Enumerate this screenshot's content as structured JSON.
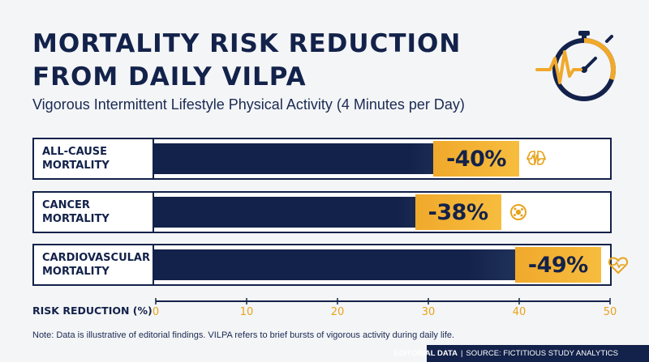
{
  "header": {
    "title": "MORTALITY RISK REDUCTION FROM DAILY VILPA",
    "subtitle": "Vigorous Intermittent Lifestyle Physical Activity (4 Minutes per Day)",
    "logo_icon": "stopwatch-heartbeat-icon"
  },
  "chart_data": {
    "type": "bar",
    "orientation": "horizontal",
    "categories": [
      "ALL-CAUSE\nMORTALITY",
      "CANCER\nMORTALITY",
      "CARDIOVASCULAR\nMORTALITY"
    ],
    "values": [
      40,
      38,
      49
    ],
    "value_labels": [
      "-40%",
      "-38%",
      "-49%"
    ],
    "icons": [
      "brain-pulse-icon",
      "cell-icon",
      "heart-pulse-icon"
    ],
    "xlabel": "RISK REDUCTION (%)",
    "xlim": [
      0,
      50
    ],
    "xticks": [
      "0",
      "10",
      "20",
      "30",
      "40",
      "50"
    ],
    "grid": false,
    "colors": {
      "bar": "#13224a",
      "badge": "#f5b133",
      "accent": "#e7a31c",
      "text": "#13224a"
    }
  },
  "footer": {
    "note": "Note: Data is illustrative of editorial findings. VILPA refers to brief bursts of vigorous activity during daily life.",
    "source_label": "EDITORIAL DATA",
    "source_text": "SOURCE: FICTITIOUS STUDY ANALYTICS"
  }
}
